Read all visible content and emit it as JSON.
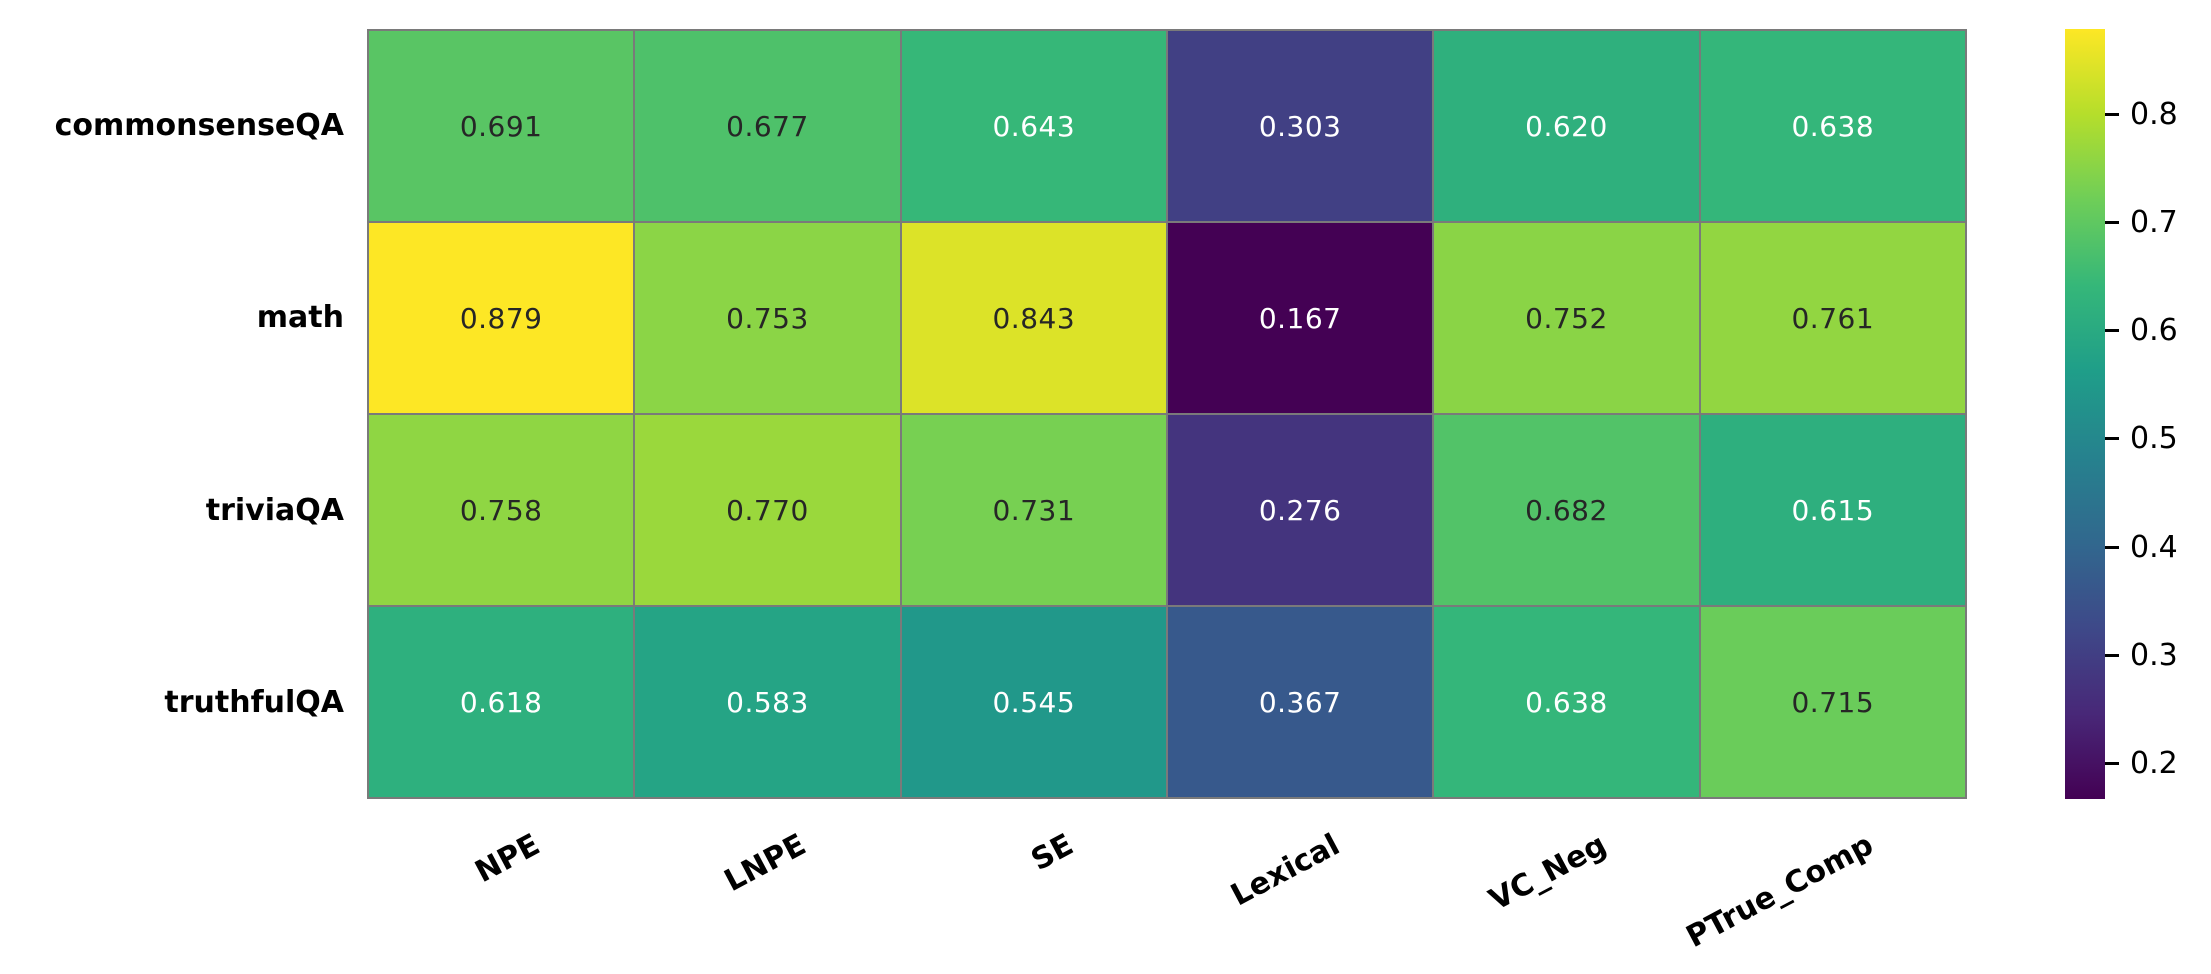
{
  "figure": {
    "background": "#ffffff"
  },
  "chart_data": {
    "type": "heatmap",
    "title": "",
    "xlabel": "",
    "ylabel": "",
    "rows": [
      "commonsenseQA",
      "math",
      "triviaQA",
      "truthfulQA"
    ],
    "columns": [
      "NPE",
      "LNPE",
      "SE",
      "Lexical",
      "VC_Neg",
      "PTrue_Comp"
    ],
    "values": [
      [
        0.691,
        0.677,
        0.643,
        0.303,
        0.62,
        0.638
      ],
      [
        0.879,
        0.753,
        0.843,
        0.167,
        0.752,
        0.761
      ],
      [
        0.758,
        0.77,
        0.731,
        0.276,
        0.682,
        0.615
      ],
      [
        0.618,
        0.583,
        0.545,
        0.367,
        0.638,
        0.715
      ]
    ],
    "value_decimals": 3,
    "vmin": 0.167,
    "vmax": 0.879,
    "colormap": "viridis",
    "colormap_anchors": [
      "#440154",
      "#482878",
      "#3e4989",
      "#31688e",
      "#26828e",
      "#1f9e89",
      "#35b779",
      "#6ece58",
      "#b5de2b",
      "#fde725"
    ],
    "colorbar": {
      "position": "right",
      "ticks": [
        0.8,
        0.7,
        0.6,
        0.5,
        0.4,
        0.3,
        0.2
      ],
      "tick_labels": [
        "0.8",
        "0.7",
        "0.6",
        "0.5",
        "0.4",
        "0.3",
        "0.2"
      ]
    },
    "annotation_colors": {
      "dark": "#262626",
      "light": "#ffffff"
    },
    "luminance_threshold": 0.408,
    "grid_line_color": "#7a7a7a",
    "tick_label_color": "#000000",
    "x_tick_rotation_deg": 28,
    "grid_on": false,
    "legend": "none"
  }
}
